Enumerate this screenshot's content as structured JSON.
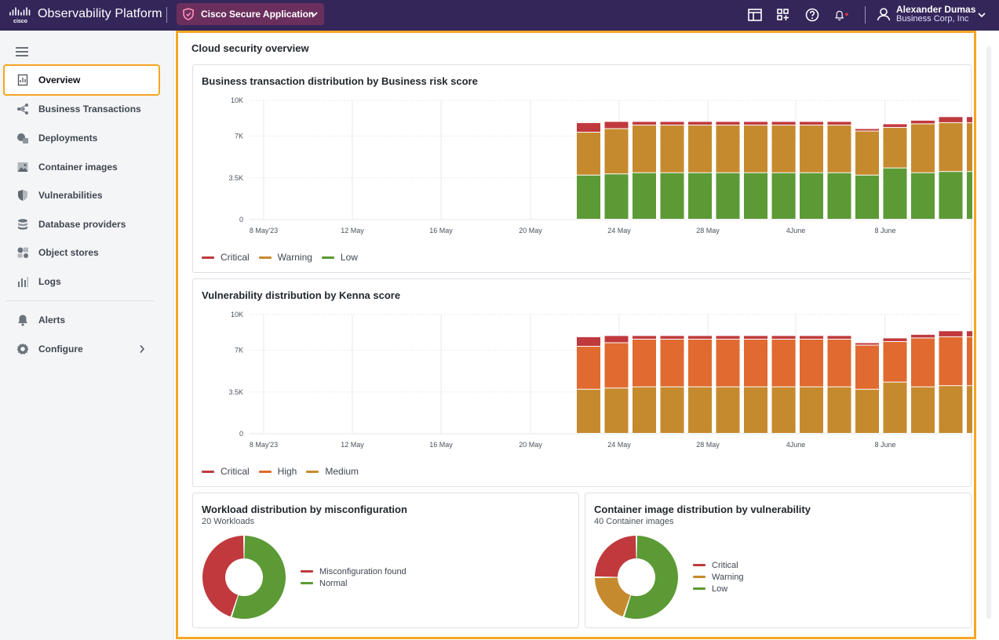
{
  "header": {
    "brand": "Observability Platform",
    "app_selector": "Cisco Secure Application",
    "user_name": "Alexander Dumas",
    "user_org": "Business Corp, Inc",
    "icons": [
      "layout-icon",
      "apps-grid-icon",
      "help-icon",
      "bell-icon"
    ],
    "notification_dot_color": "#e0334b"
  },
  "sidebar": {
    "items": [
      {
        "label": "Overview",
        "icon": "overview-icon"
      },
      {
        "label": "Business Transactions",
        "icon": "business-transactions-icon"
      },
      {
        "label": "Deployments",
        "icon": "deployments-icon"
      },
      {
        "label": "Container images",
        "icon": "container-images-icon"
      },
      {
        "label": "Vulnerabilities",
        "icon": "vulnerabilities-icon"
      },
      {
        "label": "Database providers",
        "icon": "database-icon"
      },
      {
        "label": "Object stores",
        "icon": "object-stores-icon"
      },
      {
        "label": "Logs",
        "icon": "logs-icon"
      },
      {
        "label": "Alerts",
        "icon": "bell-icon"
      },
      {
        "label": "Configure",
        "icon": "gear-icon"
      }
    ]
  },
  "main": {
    "title": "Cloud security overview"
  },
  "chart_data": [
    {
      "type": "bar",
      "stacked": true,
      "title": "Business transaction distribution by Business risk score",
      "y_ticks": [
        "10K",
        "7K",
        "3.5K",
        "0"
      ],
      "x_ticks": [
        "8 May'23",
        "12 May",
        "16 May",
        "20 May",
        "24 May",
        "28 May",
        "4June",
        "8 June"
      ],
      "ylim": [
        0,
        10000
      ],
      "categories": [
        "May 23",
        "May 24",
        "May 25",
        "May 26",
        "May 27",
        "May 28",
        "May 29",
        "May 30",
        "May 31",
        "Jun 1",
        "Jun 2",
        "Jun 3",
        "Jun 4",
        "Jun 5",
        "Jun 6"
      ],
      "series": [
        {
          "name": "Low",
          "color": "#5b9a35",
          "values": [
            3700,
            3800,
            3900,
            3900,
            3900,
            3900,
            3900,
            3900,
            3900,
            3900,
            3700,
            4300,
            3900,
            4000,
            4000
          ]
        },
        {
          "name": "Warning",
          "color": "#c68a2e",
          "values": [
            3600,
            3800,
            4000,
            4000,
            4000,
            4000,
            4000,
            4000,
            4000,
            4000,
            3700,
            3400,
            4100,
            4100,
            4100
          ]
        },
        {
          "name": "Critical",
          "color": "#c0393d",
          "values": [
            800,
            600,
            300,
            300,
            300,
            300,
            300,
            300,
            300,
            300,
            200,
            300,
            300,
            500,
            500
          ]
        }
      ],
      "legend": [
        "Critical",
        "Warning",
        "Low"
      ],
      "legend_colors": [
        "#c0393d",
        "#c68a2e",
        "#5b9a35"
      ],
      "legend_position": "bottom-left"
    },
    {
      "type": "bar",
      "stacked": true,
      "title": "Vulnerability distribution by Kenna score",
      "y_ticks": [
        "10K",
        "7K",
        "3.5K",
        "0"
      ],
      "x_ticks": [
        "8 May'23",
        "12 May",
        "16 May",
        "20 May",
        "24 May",
        "28 May",
        "4June",
        "8 June"
      ],
      "ylim": [
        0,
        10000
      ],
      "categories": [
        "May 23",
        "May 24",
        "May 25",
        "May 26",
        "May 27",
        "May 28",
        "May 29",
        "May 30",
        "May 31",
        "Jun 1",
        "Jun 2",
        "Jun 3",
        "Jun 4",
        "Jun 5",
        "Jun 6"
      ],
      "series": [
        {
          "name": "Medium",
          "color": "#c68a2e",
          "values": [
            3700,
            3800,
            3900,
            3900,
            3900,
            3900,
            3900,
            3900,
            3900,
            3900,
            3700,
            4300,
            3900,
            4000,
            4000
          ]
        },
        {
          "name": "High",
          "color": "#e06a2f",
          "values": [
            3600,
            3800,
            4000,
            4000,
            4000,
            4000,
            4000,
            4000,
            4000,
            4000,
            3700,
            3400,
            4100,
            4100,
            4100
          ]
        },
        {
          "name": "Critical",
          "color": "#c0393d",
          "values": [
            800,
            600,
            300,
            300,
            300,
            300,
            300,
            300,
            300,
            300,
            200,
            300,
            300,
            500,
            500
          ]
        }
      ],
      "legend": [
        "Critical",
        "High",
        "Medium"
      ],
      "legend_colors": [
        "#c0393d",
        "#e06a2f",
        "#c68a2e"
      ],
      "legend_position": "bottom-left"
    },
    {
      "type": "pie",
      "donut": true,
      "title": "Workload distribution by misconfiguration",
      "subtitle": "20 Workloads",
      "slices": [
        {
          "name": "Misconfiguration found",
          "value": 9,
          "color": "#c0393d"
        },
        {
          "name": "Normal",
          "value": 11,
          "color": "#5b9a35"
        }
      ],
      "legend_position": "right"
    },
    {
      "type": "pie",
      "donut": true,
      "title": "Container image distribution by vulnerability",
      "subtitle": "40 Container images",
      "slices": [
        {
          "name": "Critical",
          "value": 10,
          "color": "#c0393d"
        },
        {
          "name": "Warning",
          "value": 8,
          "color": "#c68a2e"
        },
        {
          "name": "Low",
          "value": 22,
          "color": "#5b9a35"
        }
      ],
      "legend_position": "right"
    }
  ]
}
